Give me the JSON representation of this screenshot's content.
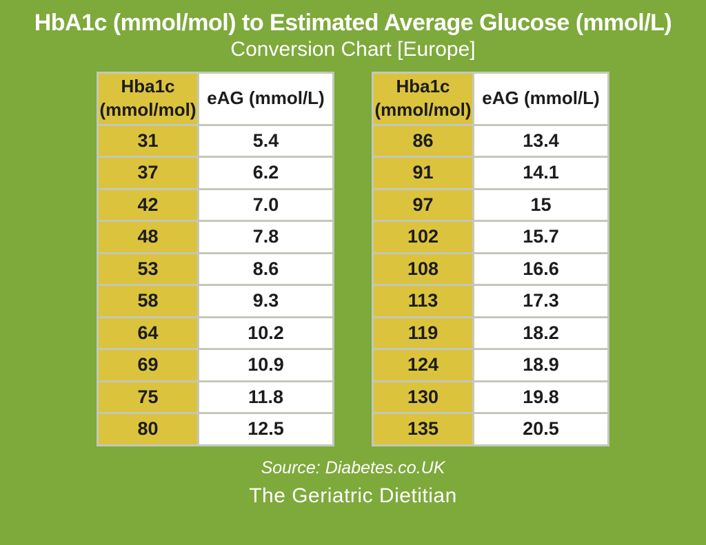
{
  "title": "HbA1c (mmol/mol) to Estimated Average Glucose (mmol/L)",
  "subtitle": "Conversion Chart [Europe]",
  "source": "Source: Diabetes.co.UK",
  "brand": "The Geriatric Dietitian",
  "colors": {
    "background_green": "#7ea93b",
    "cell_yellow": "#dcc33e",
    "cell_white": "#ffffff",
    "table_border": "#c3c8b9",
    "table_text": "#1c1c1c",
    "heading_text": "#ffffff"
  },
  "chart_data": {
    "type": "table",
    "title": "HbA1c (mmol/mol) to Estimated Average Glucose (mmol/L)",
    "subtitle": "Conversion Chart [Europe]",
    "source": "Source: Diabetes.co.UK",
    "tables": [
      {
        "headers": [
          "Hba1c\n(mmol/mol)",
          "eAG (mmol/L)"
        ],
        "rows": [
          [
            "31",
            "5.4"
          ],
          [
            "37",
            "6.2"
          ],
          [
            "42",
            "7.0"
          ],
          [
            "48",
            "7.8"
          ],
          [
            "53",
            "8.6"
          ],
          [
            "58",
            "9.3"
          ],
          [
            "64",
            "10.2"
          ],
          [
            "69",
            "10.9"
          ],
          [
            "75",
            "11.8"
          ],
          [
            "80",
            "12.5"
          ]
        ]
      },
      {
        "headers": [
          "Hba1c\n(mmol/mol)",
          "eAG (mmol/L)"
        ],
        "rows": [
          [
            "86",
            "13.4"
          ],
          [
            "91",
            "14.1"
          ],
          [
            "97",
            "15"
          ],
          [
            "102",
            "15.7"
          ],
          [
            "108",
            "16.6"
          ],
          [
            "113",
            "17.3"
          ],
          [
            "119",
            "18.2"
          ],
          [
            "124",
            "18.9"
          ],
          [
            "130",
            "19.8"
          ],
          [
            "135",
            "20.5"
          ]
        ]
      }
    ]
  }
}
